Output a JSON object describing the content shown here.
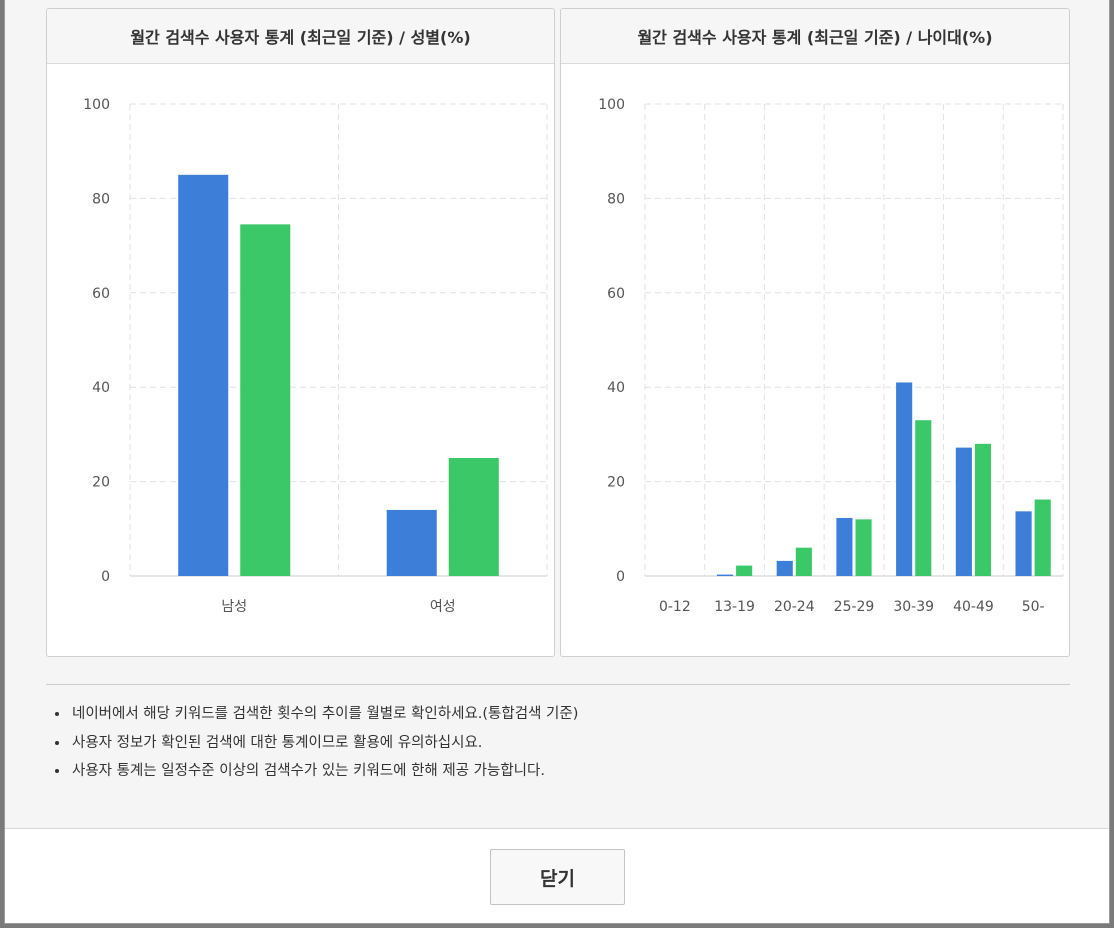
{
  "colors": {
    "series_1": "#3d7fd8",
    "series_2": "#3ac869"
  },
  "dialog": {
    "close_label": "닫기",
    "notes": [
      "네이버에서 해당 키워드를 검색한 횟수의 추이를 월별로 확인하세요.(통합검색 기준)",
      "사용자 정보가 확인된 검색에 대한 통계이므로 활용에 유의하십시요.",
      "사용자 통계는 일정수준 이상의 검색수가 있는 키워드에 한해 제공 가능합니다."
    ]
  },
  "chart_data": [
    {
      "type": "bar",
      "title": "월간 검색수 사용자 통계 (최근일 기준) / 성별(%)",
      "categories": [
        "남성",
        "여성"
      ],
      "series": [
        {
          "values": [
            85,
            14
          ]
        },
        {
          "values": [
            74.5,
            25
          ]
        }
      ],
      "ylim": [
        0,
        100
      ],
      "yticks": [
        0,
        20,
        40,
        60,
        80,
        100
      ],
      "grid": true
    },
    {
      "type": "bar",
      "title": "월간 검색수 사용자 통계 (최근일 기준) / 나이대(%)",
      "categories": [
        "0-12",
        "13-19",
        "20-24",
        "25-29",
        "30-39",
        "40-49",
        "50-"
      ],
      "series": [
        {
          "values": [
            0,
            0.3,
            3.2,
            12.3,
            41,
            27.2,
            13.7
          ]
        },
        {
          "values": [
            0,
            2.2,
            6,
            12,
            33,
            28,
            16.2
          ]
        }
      ],
      "ylim": [
        0,
        100
      ],
      "yticks": [
        0,
        20,
        40,
        60,
        80,
        100
      ],
      "grid": true
    }
  ]
}
